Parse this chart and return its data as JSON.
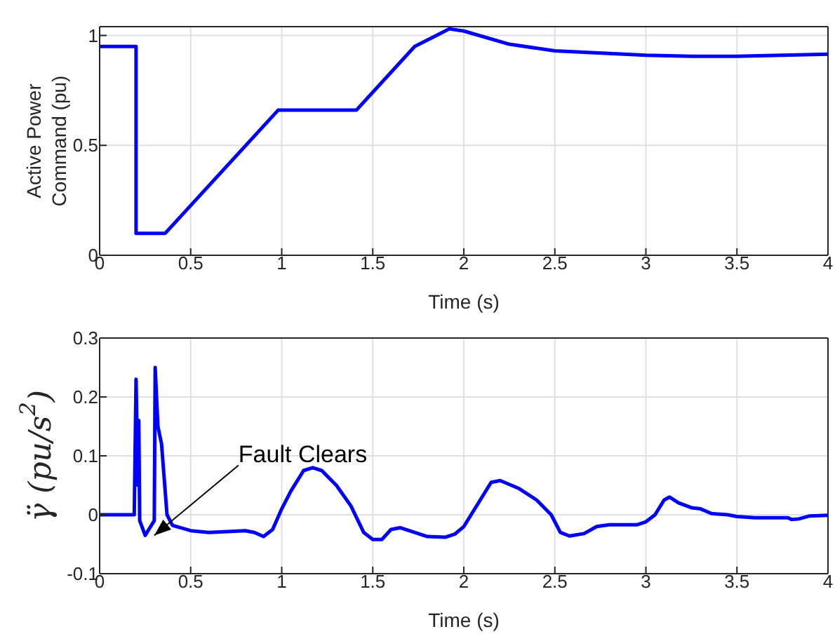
{
  "chart_data": [
    {
      "type": "line",
      "xlabel": "Time (s)",
      "ylabel": "Active Power Command (pu)",
      "xlim": [
        0,
        4
      ],
      "xticks": [
        0,
        0.5,
        1,
        1.5,
        2,
        2.5,
        3,
        3.5,
        4
      ],
      "ylim": [
        0,
        1.04
      ],
      "yticks": [
        0,
        0.5,
        1
      ],
      "grid": true,
      "legend": false,
      "marker": "none",
      "line_style": "solid",
      "series": [
        {
          "color": "#0000ff",
          "x": [
            0,
            0.2,
            0.2,
            0.36,
            0.98,
            1.41,
            1.73,
            1.85,
            1.92,
            2.0,
            2.25,
            2.5,
            3.0,
            3.25,
            3.5,
            4.0
          ],
          "values": [
            0.95,
            0.95,
            0.1,
            0.1,
            0.66,
            0.66,
            0.95,
            1.0,
            1.03,
            1.02,
            0.96,
            0.93,
            0.91,
            0.905,
            0.905,
            0.915
          ]
        }
      ]
    },
    {
      "type": "line",
      "xlabel": "Time (s)",
      "ylabel": "γ̈ (pu/s$^{2}$)",
      "xlim": [
        0,
        4
      ],
      "xticks": [
        0,
        0.5,
        1,
        1.5,
        2,
        2.5,
        3,
        3.5,
        4
      ],
      "ylim": [
        -0.1,
        0.3
      ],
      "yticks": [
        -0.1,
        0,
        0.1,
        0.2,
        0.3
      ],
      "grid": true,
      "legend": false,
      "marker": "none",
      "line_style": "solid",
      "annotations": [
        {
          "text": "Fault Clears",
          "x": 0.3,
          "y": -0.035
        }
      ],
      "series": [
        {
          "color": "#0000ff",
          "x": [
            0,
            0.19,
            0.2,
            0.21,
            0.215,
            0.22,
            0.25,
            0.28,
            0.3,
            0.305,
            0.32,
            0.34,
            0.37,
            0.4,
            0.5,
            0.6,
            0.8,
            0.85,
            0.9,
            0.95,
            1.0,
            1.05,
            1.12,
            1.17,
            1.22,
            1.3,
            1.38,
            1.45,
            1.5,
            1.55,
            1.6,
            1.65,
            1.7,
            1.8,
            1.9,
            1.95,
            2.0,
            2.08,
            2.15,
            2.2,
            2.3,
            2.4,
            2.48,
            2.53,
            2.58,
            2.66,
            2.73,
            2.8,
            2.95,
            3.0,
            3.05,
            3.1,
            3.13,
            3.18,
            3.25,
            3.3,
            3.36,
            3.45,
            3.5,
            3.6,
            3.78,
            3.8,
            3.84,
            3.9,
            4.0
          ],
          "values": [
            0,
            0,
            0.23,
            0.05,
            0.16,
            -0.01,
            -0.035,
            -0.02,
            -0.01,
            0.25,
            0.15,
            0.12,
            0.0,
            -0.018,
            -0.027,
            -0.03,
            -0.027,
            -0.03,
            -0.037,
            -0.025,
            0.01,
            0.04,
            0.075,
            0.08,
            0.075,
            0.05,
            0.015,
            -0.03,
            -0.042,
            -0.042,
            -0.025,
            -0.022,
            -0.027,
            -0.037,
            -0.038,
            -0.033,
            -0.02,
            0.02,
            0.055,
            0.058,
            0.045,
            0.025,
            0.0,
            -0.03,
            -0.036,
            -0.032,
            -0.02,
            -0.017,
            -0.017,
            -0.012,
            0.0,
            0.025,
            0.03,
            0.02,
            0.012,
            0.01,
            0.002,
            0.0,
            -0.003,
            -0.005,
            -0.005,
            -0.008,
            -0.007,
            -0.002,
            -0.001
          ]
        }
      ]
    }
  ]
}
